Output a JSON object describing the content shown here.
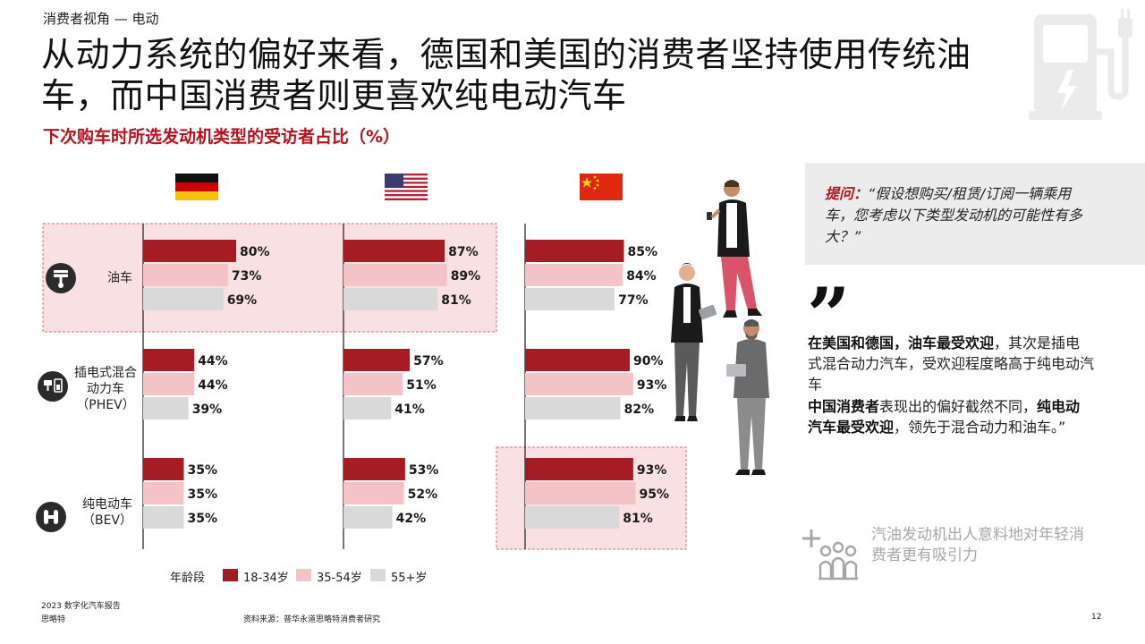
{
  "header": {
    "section": "消费者视角 — 电动",
    "title": "从动力系统的偏好来看，德国和美国的消费者坚持使用传统油车，而中国消费者则更喜欢纯电动汽车",
    "subtitle": "下次购车时所选发动机类型的受访者占比（%）"
  },
  "colors": {
    "accent": "#b5121b",
    "bar_young": "#a61c23",
    "bar_mid": "#f4c3c7",
    "bar_old": "#d9d9d9",
    "highlight_fill": "#f9e1e3",
    "highlight_border": "#e06b75"
  },
  "chart_data": {
    "type": "bar",
    "countries": [
      "德国",
      "美国",
      "中国"
    ],
    "categories": [
      "油车",
      "插电式混合动力车（PHEV）",
      "纯电动车（BEV）"
    ],
    "series": [
      {
        "name": "18-34岁",
        "values": {
          "德国": [
            80,
            44,
            35
          ],
          "美国": [
            87,
            57,
            53
          ],
          "中国": [
            85,
            90,
            93
          ]
        }
      },
      {
        "name": "35-54岁",
        "values": {
          "德国": [
            73,
            44,
            35
          ],
          "美国": [
            89,
            51,
            52
          ],
          "中国": [
            84,
            93,
            95
          ]
        }
      },
      {
        "name": "55+岁",
        "values": {
          "德国": [
            69,
            39,
            35
          ],
          "美国": [
            81,
            41,
            42
          ],
          "中国": [
            77,
            82,
            81
          ]
        }
      }
    ],
    "legend_title": "年龄段",
    "legend_position": "bottom",
    "highlights": [
      {
        "category": "油车",
        "countries": [
          "德国",
          "美国"
        ]
      },
      {
        "category": "纯电动车（BEV）",
        "countries": [
          "中国"
        ]
      }
    ]
  },
  "categories_display": [
    {
      "line1": "油车",
      "line2": "",
      "line3": "",
      "icon": "piston-icon"
    },
    {
      "line1": "插电式混合",
      "line2": "动力车",
      "line3": "（PHEV）",
      "icon": "hybrid-icon"
    },
    {
      "line1": "纯电动车",
      "line2": "（BEV）",
      "line3": "",
      "icon": "ev-plug-icon"
    }
  ],
  "callout": {
    "label": "提问：",
    "text": "“假设想购买/租赁/订阅一辆乘用车，您考虑以下类型发动机的可能性有多大？”"
  },
  "quote": {
    "mark": "”",
    "p1_bold": "在美国和德国，油车最受欢迎",
    "p1_rest": "，其次是插电式混合动力汽车，受欢迎程度略高于纯电动汽车",
    "p2_bold1": "中国消费者",
    "p2_mid": "表现出的偏好截然不同，",
    "p2_bold2": "纯电动汽车最受欢迎",
    "p2_rest": "，领先于混合动力和油车。”"
  },
  "insight": {
    "text": "汽油发动机出人意料地对年轻消费者更有吸引力",
    "icon": "plus-people-icon"
  },
  "footer": {
    "report": "2023  数字化汽车报告",
    "brand": "思略特",
    "source": "资料来源：普华永道思略特消费者研究",
    "page": "12"
  }
}
